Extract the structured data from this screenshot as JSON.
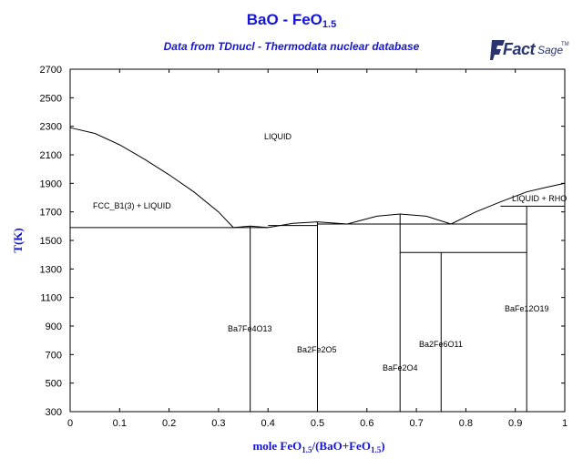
{
  "header": {
    "title_main": "BaO - FeO",
    "title_sub": "1.5",
    "subtitle": "Data from TDnucl - Thermodata nuclear database",
    "logo_fact": "Fact",
    "logo_sage": "Sage",
    "logo_tm": "TM"
  },
  "axes": {
    "ylabel": "T(K)",
    "xlabel_parts": [
      "mole FeO",
      "1.5",
      "/(BaO+FeO",
      "1.5",
      ")"
    ],
    "x_ticks": [
      "0",
      "0.1",
      "0.2",
      "0.3",
      "0.4",
      "0.5",
      "0.6",
      "0.7",
      "0.8",
      "0.9",
      "1"
    ],
    "y_ticks": [
      "300",
      "500",
      "700",
      "900",
      "1100",
      "1300",
      "1500",
      "1700",
      "1900",
      "2100",
      "2300",
      "2500",
      "2700"
    ]
  },
  "regions": {
    "liquid": "LIQUID",
    "fcc_liquid": "FCC_B1(3) + LIQUID",
    "liquid_rho": "LIQUID + RHO",
    "ba7fe4o13": "Ba7Fe4O13",
    "ba2fe2o5": "Ba2Fe2O5",
    "bafe2o4": "BaFe2O4",
    "ba2fe6o11": "Ba2Fe6O11",
    "bafe12o19": "BaFe12O19"
  },
  "colors": {
    "title": "#1515d6",
    "lines": "#000000",
    "logo": "#2a3570"
  },
  "chart_data": {
    "type": "phase-diagram",
    "title": "BaO - FeO1.5",
    "xlabel": "mole FeO1.5/(BaO+FeO1.5)",
    "ylabel": "T(K)",
    "xlim": [
      0,
      1
    ],
    "ylim": [
      300,
      2700
    ],
    "x_ticks": [
      0,
      0.1,
      0.2,
      0.3,
      0.4,
      0.5,
      0.6,
      0.7,
      0.8,
      0.9,
      1
    ],
    "y_ticks": [
      300,
      500,
      700,
      900,
      1100,
      1300,
      1500,
      1700,
      1900,
      2100,
      2300,
      2500,
      2700
    ],
    "liquidus": [
      {
        "name": "fcc-liquidus",
        "points": [
          [
            0,
            2290
          ],
          [
            0.05,
            2250
          ],
          [
            0.1,
            2170
          ],
          [
            0.15,
            2070
          ],
          [
            0.2,
            1960
          ],
          [
            0.25,
            1840
          ],
          [
            0.3,
            1700
          ],
          [
            0.33,
            1590
          ]
        ]
      },
      {
        "name": "ba7fe4o13-dome",
        "points": [
          [
            0.33,
            1590
          ],
          [
            0.364,
            1600
          ],
          [
            0.4,
            1590
          ]
        ]
      },
      {
        "name": "ba2fe2o5-dome",
        "points": [
          [
            0.4,
            1590
          ],
          [
            0.45,
            1620
          ],
          [
            0.5,
            1630
          ],
          [
            0.56,
            1615
          ]
        ]
      },
      {
        "name": "bafe2o4-dome",
        "points": [
          [
            0.56,
            1615
          ],
          [
            0.62,
            1670
          ],
          [
            0.667,
            1685
          ],
          [
            0.72,
            1670
          ],
          [
            0.77,
            1615
          ]
        ]
      },
      {
        "name": "bafe12o19-liquidus",
        "points": [
          [
            0.77,
            1615
          ],
          [
            0.82,
            1700
          ],
          [
            0.87,
            1770
          ],
          [
            0.923,
            1840
          ],
          [
            0.96,
            1870
          ],
          [
            1.0,
            1900
          ]
        ]
      }
    ],
    "solidus_lines": [
      {
        "name": "eutectic-1590",
        "points": [
          [
            0,
            1590
          ],
          [
            0.4,
            1590
          ]
        ]
      },
      {
        "name": "line-ba2fe2o5",
        "points": [
          [
            0.4,
            1605
          ],
          [
            0.5,
            1605
          ]
        ]
      },
      {
        "name": "eutectic-1615",
        "points": [
          [
            0.5,
            1615
          ],
          [
            0.923,
            1615
          ]
        ]
      },
      {
        "name": "ba2fe6o11-top",
        "points": [
          [
            0.667,
            1415
          ],
          [
            0.923,
            1415
          ]
        ]
      },
      {
        "name": "liquid-rho-line",
        "points": [
          [
            0.923,
            1740
          ],
          [
            1.0,
            1740
          ]
        ]
      },
      {
        "name": "upper-rho",
        "points": [
          [
            0.87,
            1740
          ],
          [
            0.923,
            1740
          ]
        ]
      }
    ],
    "compound_lines": [
      {
        "name": "Ba7Fe4O13",
        "x": 0.364,
        "ymax": 1600
      },
      {
        "name": "Ba2Fe2O5",
        "x": 0.5,
        "ymax": 1630
      },
      {
        "name": "BaFe2O4",
        "x": 0.667,
        "ymax": 1685
      },
      {
        "name": "Ba2Fe6O11",
        "x": 0.75,
        "ymax": 1415
      },
      {
        "name": "BaFe12O19",
        "x": 0.923,
        "ymax": 1740
      }
    ]
  }
}
